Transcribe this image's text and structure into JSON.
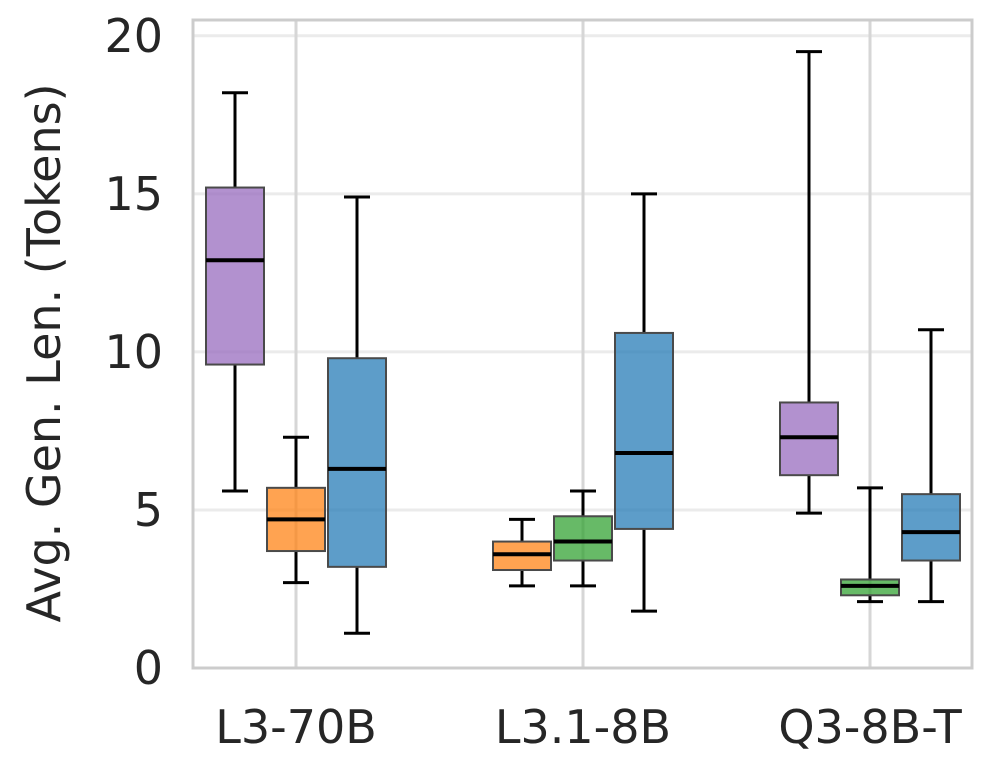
{
  "chart_data": {
    "type": "box",
    "title": "",
    "xlabel": "",
    "ylabel": "Avg. Gen. Len. (Tokens)",
    "ylim": [
      0,
      20.5
    ],
    "yticks": [
      0,
      5,
      10,
      15,
      20
    ],
    "grid": true,
    "categories": [
      "L3-70B",
      "L3.1-8B",
      "Q3-8B-T"
    ],
    "boxes": [
      {
        "category": "L3-70B",
        "color": "#9467bd",
        "whisker_low": 5.6,
        "q1": 9.6,
        "median": 12.9,
        "q3": 15.2,
        "whisker_high": 18.2
      },
      {
        "category": "L3-70B",
        "color": "#ff7f0e",
        "whisker_low": 2.7,
        "q1": 3.7,
        "median": 4.7,
        "q3": 5.7,
        "whisker_high": 7.3
      },
      {
        "category": "L3-70B",
        "color": "#1f77b4",
        "whisker_low": 1.1,
        "q1": 3.2,
        "median": 6.3,
        "q3": 9.8,
        "whisker_high": 14.9
      },
      {
        "category": "L3.1-8B",
        "color": "#ff7f0e",
        "whisker_low": 2.6,
        "q1": 3.1,
        "median": 3.6,
        "q3": 4.0,
        "whisker_high": 4.7
      },
      {
        "category": "L3.1-8B",
        "color": "#2ca02c",
        "whisker_low": 2.6,
        "q1": 3.4,
        "median": 4.0,
        "q3": 4.8,
        "whisker_high": 5.6
      },
      {
        "category": "L3.1-8B",
        "color": "#1f77b4",
        "whisker_low": 1.8,
        "q1": 4.4,
        "median": 6.8,
        "q3": 10.6,
        "whisker_high": 15.0
      },
      {
        "category": "Q3-8B-T",
        "color": "#9467bd",
        "whisker_low": 4.9,
        "q1": 6.1,
        "median": 7.3,
        "q3": 8.4,
        "whisker_high": 19.5
      },
      {
        "category": "Q3-8B-T",
        "color": "#2ca02c",
        "whisker_low": 2.1,
        "q1": 2.3,
        "median": 2.6,
        "q3": 2.8,
        "whisker_high": 5.7
      },
      {
        "category": "Q3-8B-T",
        "color": "#1f77b4",
        "whisker_low": 2.1,
        "q1": 3.4,
        "median": 4.3,
        "q3": 5.5,
        "whisker_high": 10.7
      }
    ]
  }
}
